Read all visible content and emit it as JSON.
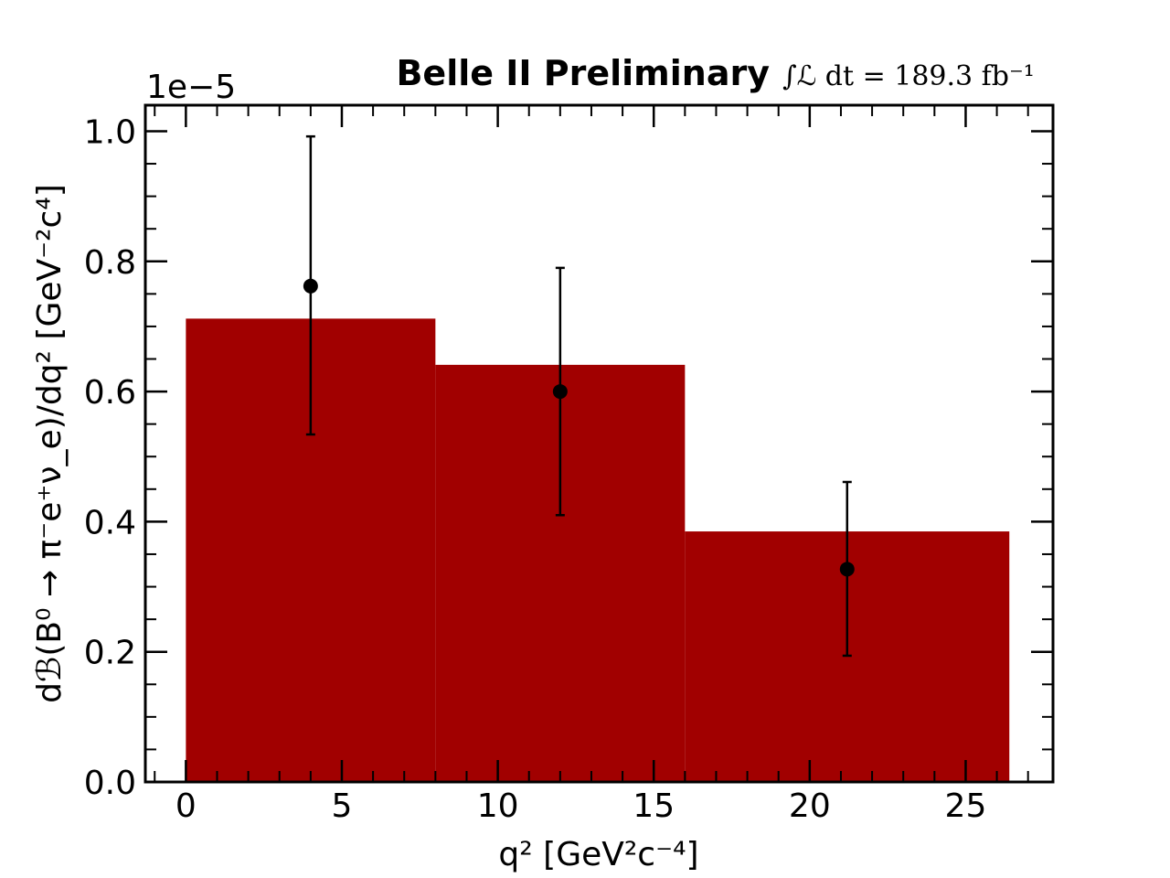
{
  "chart_data": {
    "type": "bar",
    "title": "Belle II Preliminary",
    "subtitle": "∫ℒ dt = 189.3 fb⁻¹",
    "xlabel": "q² [GeV²c⁻⁴]",
    "ylabel": "dℬ(B⁰ → π⁻e⁺ν_e)/dq² [GeV⁻²c⁴]",
    "y_offset_label": "1e−5",
    "xlim": [
      -1.3,
      27.8
    ],
    "ylim": [
      0.0,
      1.04
    ],
    "x_ticks": [
      0,
      5,
      10,
      15,
      20,
      25
    ],
    "x_tick_labels": [
      "0",
      "5",
      "10",
      "15",
      "20",
      "25"
    ],
    "y_ticks": [
      0.0,
      0.2,
      0.4,
      0.6,
      0.8,
      1.0
    ],
    "y_tick_labels": [
      "0.0",
      "0.2",
      "0.4",
      "0.6",
      "0.8",
      "1.0"
    ],
    "grid": false,
    "histogram": {
      "name": "",
      "bins": [
        {
          "x_low": 0,
          "x_high": 8,
          "value": 0.712
        },
        {
          "x_low": 8,
          "x_high": 16,
          "value": 0.641
        },
        {
          "x_low": 16,
          "x_high": 26.4,
          "value": 0.385
        }
      ],
      "color": "#a10000"
    },
    "points": {
      "name": "",
      "x": [
        4.0,
        12.0,
        21.2
      ],
      "y": [
        0.762,
        0.6,
        0.327
      ],
      "y_err_low": [
        0.228,
        0.19,
        0.133
      ],
      "y_err_high": [
        0.23,
        0.19,
        0.134
      ],
      "color": "#000000"
    }
  }
}
